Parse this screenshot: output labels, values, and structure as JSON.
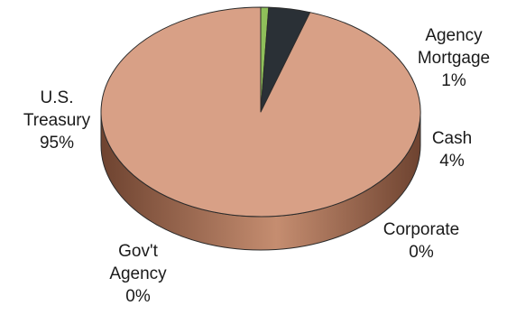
{
  "chart_data": {
    "type": "pie",
    "style": "3d",
    "start_angle_deg": 90,
    "direction": "clockwise",
    "series": [
      {
        "slices": [
          {
            "key": "agency_mortgage",
            "label_lines": [
              "Agency",
              "Mortgage"
            ],
            "pct_text": "1%",
            "value": 0.8,
            "color": "#8fbf5a",
            "label_color": "#1a1a1a"
          },
          {
            "key": "cash",
            "label_lines": [
              "Cash"
            ],
            "pct_text": "4%",
            "value": 4.2,
            "color": "#2a3036",
            "label_color": "#1a1a1a"
          },
          {
            "key": "corporate",
            "label_lines": [
              "Corporate"
            ],
            "pct_text": "0%",
            "value": 0.0,
            "color": "#6f8fb8",
            "label_color": "#1a1a1a"
          },
          {
            "key": "govt_agency",
            "label_lines": [
              "Gov't",
              "Agency"
            ],
            "pct_text": "0%",
            "value": 0.0,
            "color": "#9a9a9a",
            "label_color": "#1a1a1a"
          },
          {
            "key": "us_treasury",
            "label_lines": [
              "U.S.",
              "Treasury"
            ],
            "pct_text": "95%",
            "value": 95.0,
            "color": "#d8a086",
            "label_color": "#1a1a1a"
          }
        ]
      }
    ],
    "colors": {
      "side_dark": "#6e4330",
      "side_light": "#c58d70",
      "outline": "#2b2b2b"
    }
  }
}
